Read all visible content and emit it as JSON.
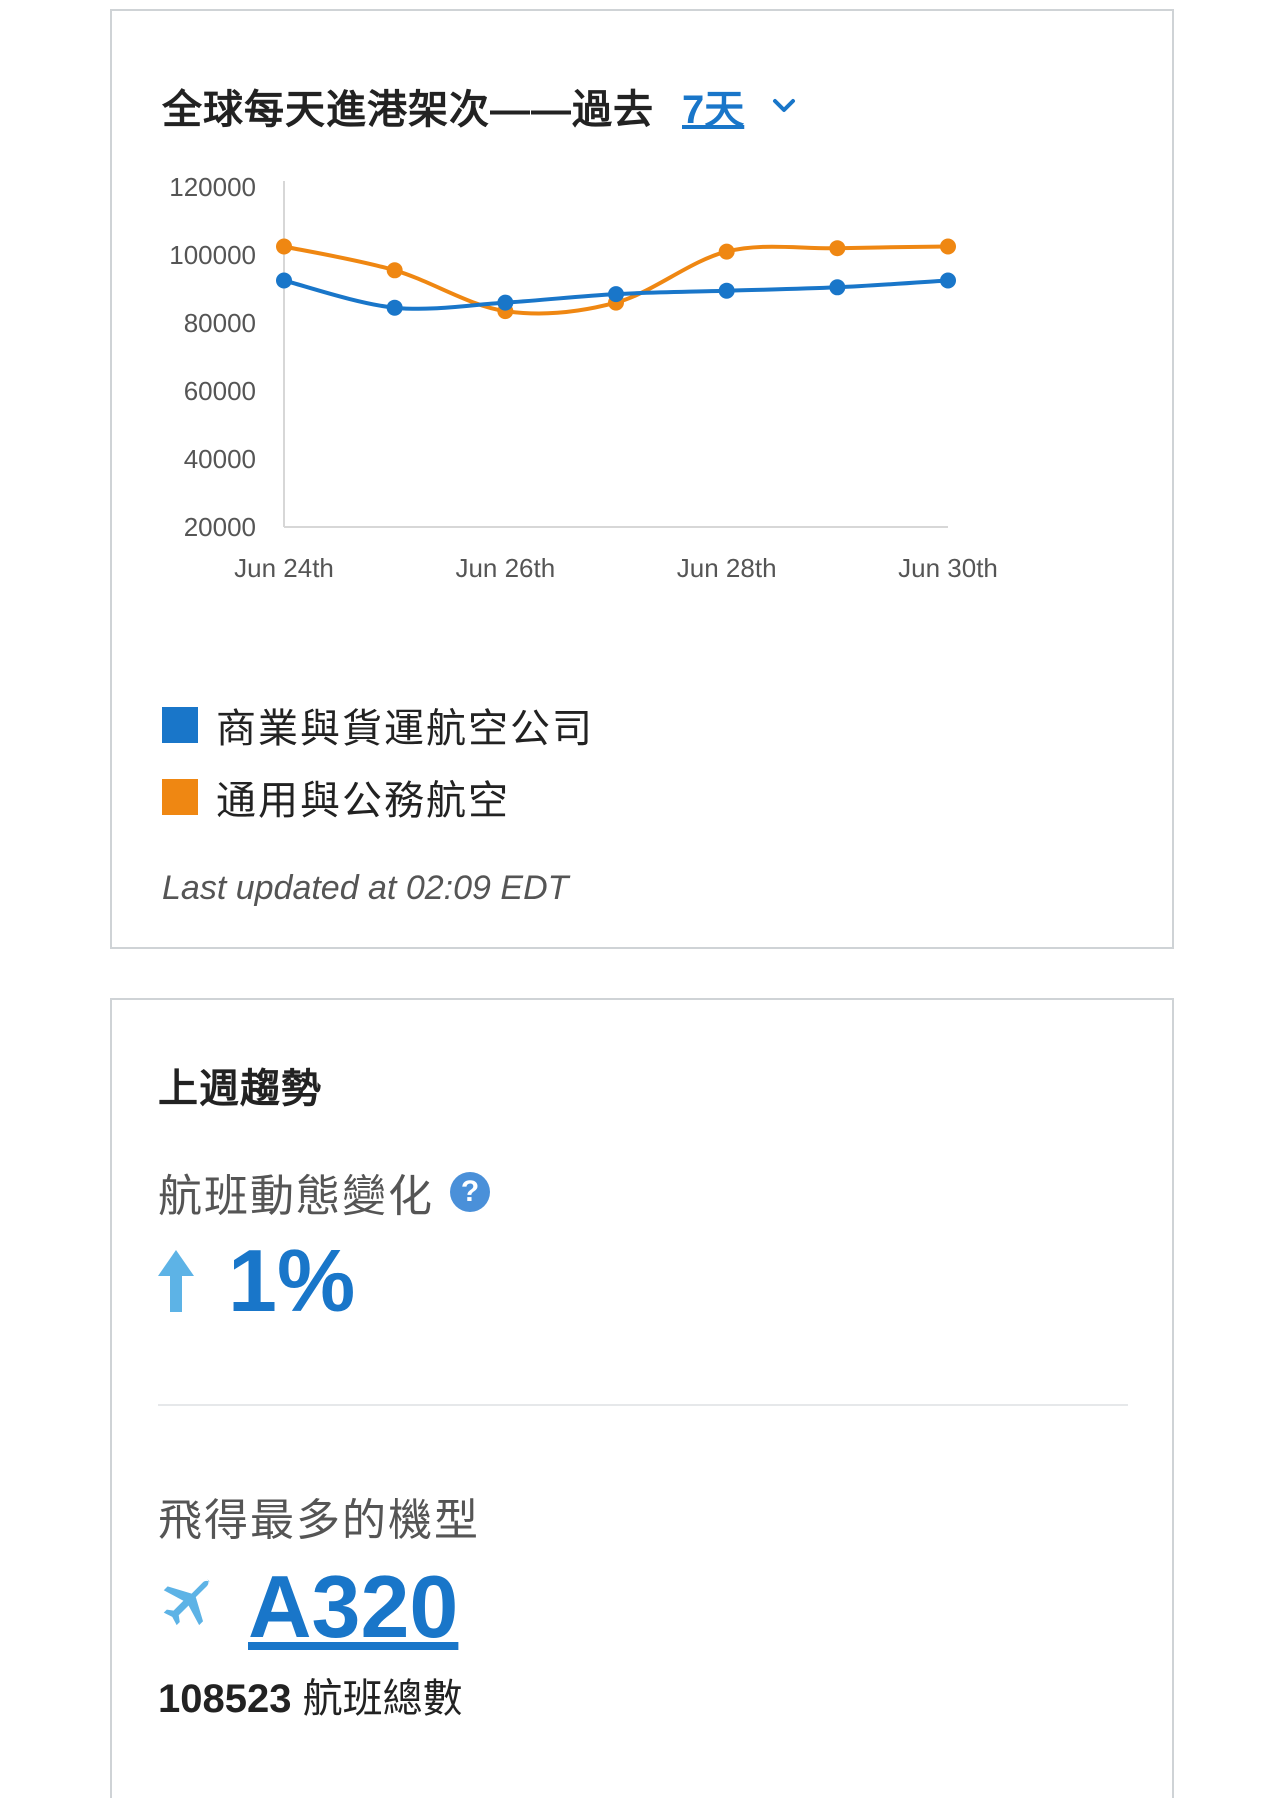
{
  "traffic_card": {
    "title": "全球每天進港架次——過去",
    "period": "7天",
    "last_updated": "Last updated at 02:09 EDT"
  },
  "colors": {
    "commercial": "#1976c9",
    "general": "#ef8712",
    "accent": "#1976c9",
    "icon_light": "#5db3e6"
  },
  "chart_data": {
    "type": "line",
    "x": [
      "Jun 24th",
      "Jun 25th",
      "Jun 26th",
      "Jun 27th",
      "Jun 28th",
      "Jun 29th",
      "Jun 30th"
    ],
    "x_tick_labels": [
      "Jun 24th",
      "Jun 26th",
      "Jun 28th",
      "Jun 30th"
    ],
    "y_ticks": [
      120000,
      100000,
      80000,
      60000,
      40000,
      20000
    ],
    "ylim": [
      20000,
      120000
    ],
    "series": [
      {
        "name": "商業與貨運航空公司",
        "color": "#1976c9",
        "values": [
          92500,
          84500,
          86000,
          88500,
          89500,
          90500,
          92500
        ]
      },
      {
        "name": "通用與公務航空",
        "color": "#ef8712",
        "values": [
          102500,
          95500,
          83500,
          86000,
          101000,
          102000,
          102500
        ]
      }
    ],
    "legend_position": "bottom-left",
    "grid": false
  },
  "trends_card": {
    "title": "上週趨勢",
    "metric_label": "航班動態變化",
    "help_icon": "?",
    "change_value": "1%",
    "aircraft_label": "飛得最多的機型",
    "aircraft_value": "A320",
    "flights_count": "108523",
    "flights_suffix": "航班總數"
  }
}
